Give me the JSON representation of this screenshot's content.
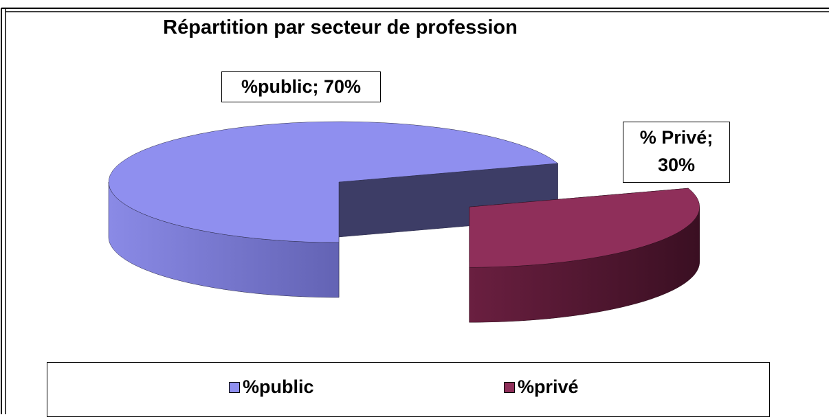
{
  "chart_data": {
    "type": "pie",
    "title": "Répartition par secteur de profession",
    "categories": [
      "%public",
      "%privé"
    ],
    "values": [
      70,
      30
    ],
    "value_labels": [
      "%public; 70%",
      "% Privé; 30%"
    ],
    "colors": [
      "#8f8fef",
      "#8f2f5a"
    ],
    "legend": "bottom"
  }
}
